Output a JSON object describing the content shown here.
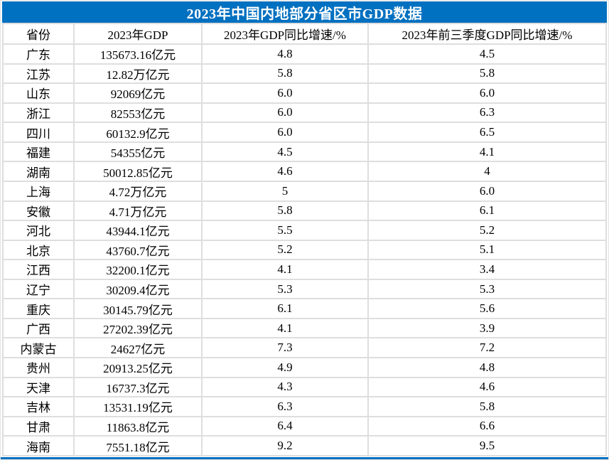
{
  "title": "2023年中国内地部分省区市GDP数据",
  "colors": {
    "title_bg": "#0070C0",
    "title_text": "#FFFFFF",
    "grid_line": "#DEDEDE",
    "body_text": "#000000",
    "bottom_border": "#0070C0"
  },
  "chart_data": {
    "type": "table",
    "title": "2023年中国内地部分省区市GDP数据",
    "columns": [
      "省份",
      "2023年GDP",
      "2023年GDP同比增速/%",
      "2023年前三季度GDP同比增速/%"
    ],
    "rows": [
      [
        "广东",
        "135673.16亿元",
        "4.8",
        "4.5"
      ],
      [
        "江苏",
        "12.82万亿元",
        "5.8",
        "5.8"
      ],
      [
        "山东",
        "92069亿元",
        "6.0",
        "6.0"
      ],
      [
        "浙江",
        "82553亿元",
        "6.0",
        "6.3"
      ],
      [
        "四川",
        "60132.9亿元",
        "6.0",
        "6.5"
      ],
      [
        "福建",
        "54355亿元",
        "4.5",
        "4.1"
      ],
      [
        "湖南",
        "50012.85亿元",
        "4.6",
        "4"
      ],
      [
        "上海",
        "4.72万亿元",
        "5",
        "6.0"
      ],
      [
        "安徽",
        "4.71万亿元",
        "5.8",
        "6.1"
      ],
      [
        "河北",
        "43944.1亿元",
        "5.5",
        "5.2"
      ],
      [
        "北京",
        "43760.7亿元",
        "5.2",
        "5.1"
      ],
      [
        "江西",
        "32200.1亿元",
        "4.1",
        "3.4"
      ],
      [
        "辽宁",
        "30209.4亿元",
        "5.3",
        "5.3"
      ],
      [
        "重庆",
        "30145.79亿元",
        "6.1",
        "5.6"
      ],
      [
        "广西",
        "27202.39亿元",
        "4.1",
        "3.9"
      ],
      [
        "内蒙古",
        "24627亿元",
        "7.3",
        "7.2"
      ],
      [
        "贵州",
        "20913.25亿元",
        "4.9",
        "4.8"
      ],
      [
        "天津",
        "16737.3亿元",
        "4.3",
        "4.6"
      ],
      [
        "吉林",
        "13531.19亿元",
        "6.3",
        "5.8"
      ],
      [
        "甘肃",
        "11863.8亿元",
        "6.4",
        "6.6"
      ],
      [
        "海南",
        "7551.18亿元",
        "9.2",
        "9.5"
      ]
    ]
  }
}
